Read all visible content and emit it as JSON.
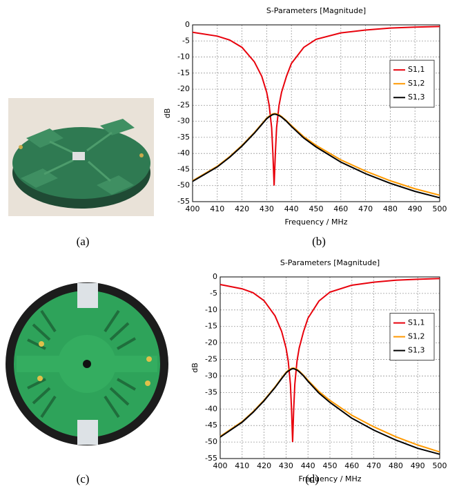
{
  "chart_data": [
    {
      "type": "line",
      "title": "S-Parameters [Magnitude]",
      "x_label": "Frequency / MHz",
      "y_label": "dB",
      "x": [
        400,
        410,
        415,
        420,
        425,
        428,
        430,
        431,
        432,
        432.5,
        433,
        433.5,
        434,
        435,
        436,
        438,
        440,
        445,
        450,
        460,
        470,
        480,
        490,
        500
      ],
      "series": [
        {
          "name": "S1,1",
          "color": "#e8000b",
          "values": [
            -2.3,
            -3.5,
            -4.7,
            -7,
            -11.5,
            -16,
            -21,
            -25,
            -32,
            -40,
            -50,
            -40,
            -32,
            -25,
            -21,
            -16,
            -12,
            -7,
            -4.5,
            -2.5,
            -1.6,
            -1,
            -0.7,
            -0.5
          ]
        },
        {
          "name": "S1,2",
          "color": "#ff9900",
          "values": [
            -48.5,
            -44,
            -41,
            -37.5,
            -33.5,
            -30.8,
            -29,
            -28.4,
            -27.9,
            -27.7,
            -27.6,
            -27.6,
            -27.7,
            -28,
            -28.5,
            -29.8,
            -31.3,
            -34.8,
            -37.5,
            -42,
            -45.5,
            -48.5,
            -51,
            -53
          ]
        },
        {
          "name": "S1,3",
          "color": "#000000",
          "values": [
            -48.7,
            -44.2,
            -41.2,
            -37.7,
            -33.7,
            -31,
            -29.2,
            -28.6,
            -28.1,
            -27.9,
            -27.8,
            -27.8,
            -27.9,
            -28.2,
            -28.7,
            -30,
            -31.6,
            -35.2,
            -38,
            -42.7,
            -46.3,
            -49.3,
            -51.8,
            -53.8
          ]
        }
      ],
      "xlim": [
        400,
        500
      ],
      "xticks": [
        400,
        410,
        420,
        430,
        440,
        450,
        460,
        470,
        480,
        490,
        500
      ],
      "ylim": [
        -55,
        0
      ],
      "yticks": [
        0,
        -5,
        -10,
        -15,
        -20,
        -25,
        -30,
        -35,
        -40,
        -45,
        -50,
        -55
      ],
      "grid": true,
      "legend": "right"
    },
    {
      "type": "line",
      "title": "S-Parameters [Magnitude]",
      "x_label": "Frequency / MHz",
      "y_label": "dB",
      "x": [
        400,
        410,
        415,
        420,
        425,
        428,
        430,
        431,
        432,
        432.5,
        433,
        433.5,
        434,
        435,
        436,
        438,
        440,
        445,
        450,
        460,
        470,
        480,
        490,
        500
      ],
      "series": [
        {
          "name": "S1,1",
          "color": "#e8000b",
          "values": [
            -2.3,
            -3.6,
            -4.8,
            -7.2,
            -11.8,
            -16.5,
            -21.5,
            -25.5,
            -32.5,
            -40,
            -50,
            -40,
            -32.5,
            -25.5,
            -21.5,
            -16.5,
            -12.5,
            -7.3,
            -4.6,
            -2.5,
            -1.6,
            -1,
            -0.7,
            -0.5
          ]
        },
        {
          "name": "S1,2",
          "color": "#ff9900",
          "values": [
            -48.3,
            -43.8,
            -40.8,
            -37.3,
            -33.3,
            -30.6,
            -28.9,
            -28.3,
            -27.9,
            -27.7,
            -27.6,
            -27.6,
            -27.7,
            -28,
            -28.5,
            -29.8,
            -31.3,
            -34.7,
            -37.4,
            -41.9,
            -45.4,
            -48.4,
            -50.9,
            -53
          ]
        },
        {
          "name": "S1,3",
          "color": "#000000",
          "values": [
            -48.5,
            -44,
            -41,
            -37.5,
            -33.5,
            -30.8,
            -29.1,
            -28.5,
            -28.1,
            -27.9,
            -27.8,
            -27.8,
            -27.9,
            -28.2,
            -28.7,
            -30,
            -31.6,
            -35.2,
            -38,
            -42.8,
            -46.4,
            -49.4,
            -51.9,
            -53.7
          ]
        }
      ],
      "xlim": [
        400,
        500
      ],
      "xticks": [
        400,
        410,
        420,
        430,
        440,
        450,
        460,
        470,
        480,
        490,
        500
      ],
      "ylim": [
        -55,
        0
      ],
      "yticks": [
        0,
        -5,
        -10,
        -15,
        -20,
        -25,
        -30,
        -35,
        -40,
        -45,
        -50,
        -55
      ],
      "grid": true,
      "legend": "right"
    }
  ],
  "captions": [
    "(a)",
    "(b)",
    "(c)",
    "(d)"
  ]
}
